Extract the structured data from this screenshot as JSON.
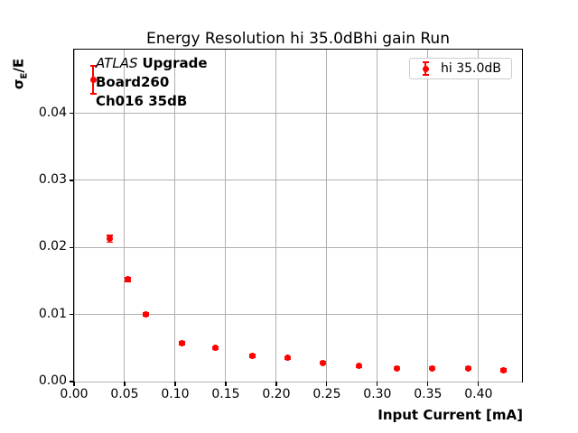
{
  "figure": {
    "ylabel_parts": {
      "sigma": "σ",
      "sub": "E",
      "rest": "/E"
    },
    "annotation": {
      "line1_italic": "ATLAS",
      "line1_bold": "Upgrade",
      "line2": "Board260",
      "line3": "Ch016 35dB"
    },
    "colors": {
      "series": "#ff0000",
      "grid": "#b0b0b0",
      "spine": "#000000",
      "legend_border": "#cccccc"
    }
  },
  "chart_data": {
    "type": "scatter",
    "title": "Energy Resolution hi 35.0dBhi gain Run",
    "xlabel": "Input Current [mA]",
    "ylabel": "σE/E",
    "grid": true,
    "legend_position": "upper right",
    "xlim": [
      0,
      0.443
    ],
    "ylim": [
      0,
      0.0495
    ],
    "x_ticks": [
      {
        "v": 0.0,
        "label": "0.00"
      },
      {
        "v": 0.05,
        "label": "0.05"
      },
      {
        "v": 0.1,
        "label": "0.10"
      },
      {
        "v": 0.15,
        "label": "0.15"
      },
      {
        "v": 0.2,
        "label": "0.20"
      },
      {
        "v": 0.25,
        "label": "0.25"
      },
      {
        "v": 0.3,
        "label": "0.30"
      },
      {
        "v": 0.35,
        "label": "0.35"
      },
      {
        "v": 0.4,
        "label": "0.40"
      }
    ],
    "y_ticks": [
      {
        "v": 0.0,
        "label": "0.00"
      },
      {
        "v": 0.01,
        "label": "0.01"
      },
      {
        "v": 0.02,
        "label": "0.02"
      },
      {
        "v": 0.03,
        "label": "0.03"
      },
      {
        "v": 0.04,
        "label": "0.04"
      }
    ],
    "series": [
      {
        "name": "hi 35.0dB",
        "color": "#ff0000",
        "marker": "circle",
        "x": [
          0.019,
          0.035,
          0.053,
          0.071,
          0.107,
          0.14,
          0.176,
          0.211,
          0.246,
          0.282,
          0.319,
          0.354,
          0.39,
          0.425
        ],
        "y": [
          0.045,
          0.0213,
          0.0152,
          0.01,
          0.0057,
          0.005,
          0.0038,
          0.0035,
          0.0028,
          0.0023,
          0.002,
          0.002,
          0.002,
          0.0017
        ],
        "yerr": [
          0.0021,
          0.0005,
          0.0003,
          0.0002,
          0.0002,
          0.0002,
          0.0002,
          0.0002,
          0.0002,
          0.0002,
          0.0002,
          0.0002,
          0.0002,
          0.0002
        ]
      }
    ]
  }
}
